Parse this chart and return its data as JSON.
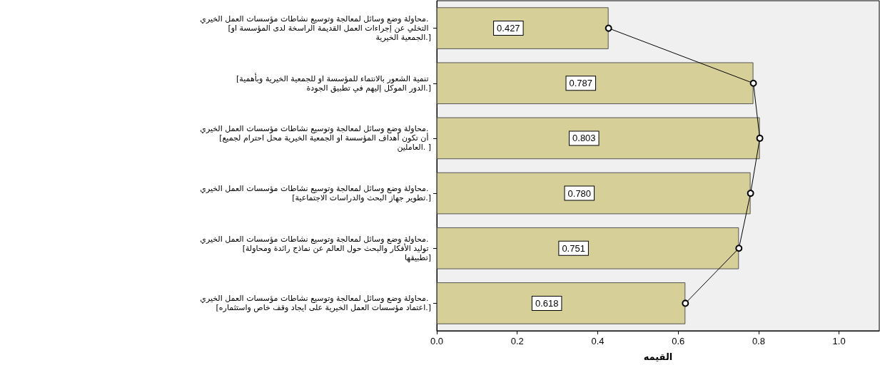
{
  "chart_data": {
    "type": "bar",
    "orientation": "horizontal",
    "xlabel": "القيمه",
    "categories": [
      "محاولة وضع وسائل لمعالجة وتوسيع نشاطات مؤسسات العمل الخيري. [التخلي عن إجراءات العمل القديمة الراسخة لدى المؤسسة او الجمعية الخيرية.]",
      "[تنمية الشعور بالانتماء للمؤسسة او للجمعية الخيرية وبأهمية الدور الموكل إليهم في تطبيق الجودة.]",
      "محاولة وضع وسائل لمعالجة وتوسيع نشاطات مؤسسات العمل الخيري. [أن تكون أهداف المؤسسة او الجمعية الخيرية محل احترام لجميع العاملين. ]",
      "محاولة وضع وسائل لمعالجة وتوسيع نشاطات مؤسسات العمل الخيري. [تطوير جهاز البحث والدراسات الاجتماعية.]",
      "محاولة وضع وسائل لمعالجة وتوسيع نشاطات مؤسسات العمل الخيري. [توليد الأفكار والبحث حول العالم عن نماذج رائدة ومحاولة تطبيقها]",
      "محاولة وضع وسائل لمعالجة وتوسيع نشاطات مؤسسات العمل الخيري. [اعتماد مؤسسات العمل الخيرية على ايجاد وقف خاص واستثماره.]"
    ],
    "series": [
      {
        "color": "#d6cf98",
        "values": [
          0.427,
          0.787,
          0.803,
          0.78,
          0.751,
          0.618
        ],
        "value_labels": [
          "0.427",
          "0.787",
          "0.803",
          "0.780",
          "0.751",
          "0.618"
        ]
      },
      {
        "type": "line",
        "color": "#000000",
        "marker": "circle",
        "values": [
          0.427,
          0.787,
          0.803,
          0.78,
          0.751,
          0.618
        ]
      }
    ],
    "xlim": [
      0,
      1.1
    ],
    "xticks": [
      {
        "value": 0,
        "label": "0.0"
      },
      {
        "value": 0.2,
        "label": "0.2"
      },
      {
        "value": 0.4,
        "label": "0.4"
      },
      {
        "value": 0.6,
        "label": "0.6"
      },
      {
        "value": 0.8,
        "label": "0.8"
      },
      {
        "value": 1,
        "label": "1.0"
      }
    ],
    "grid": false
  }
}
